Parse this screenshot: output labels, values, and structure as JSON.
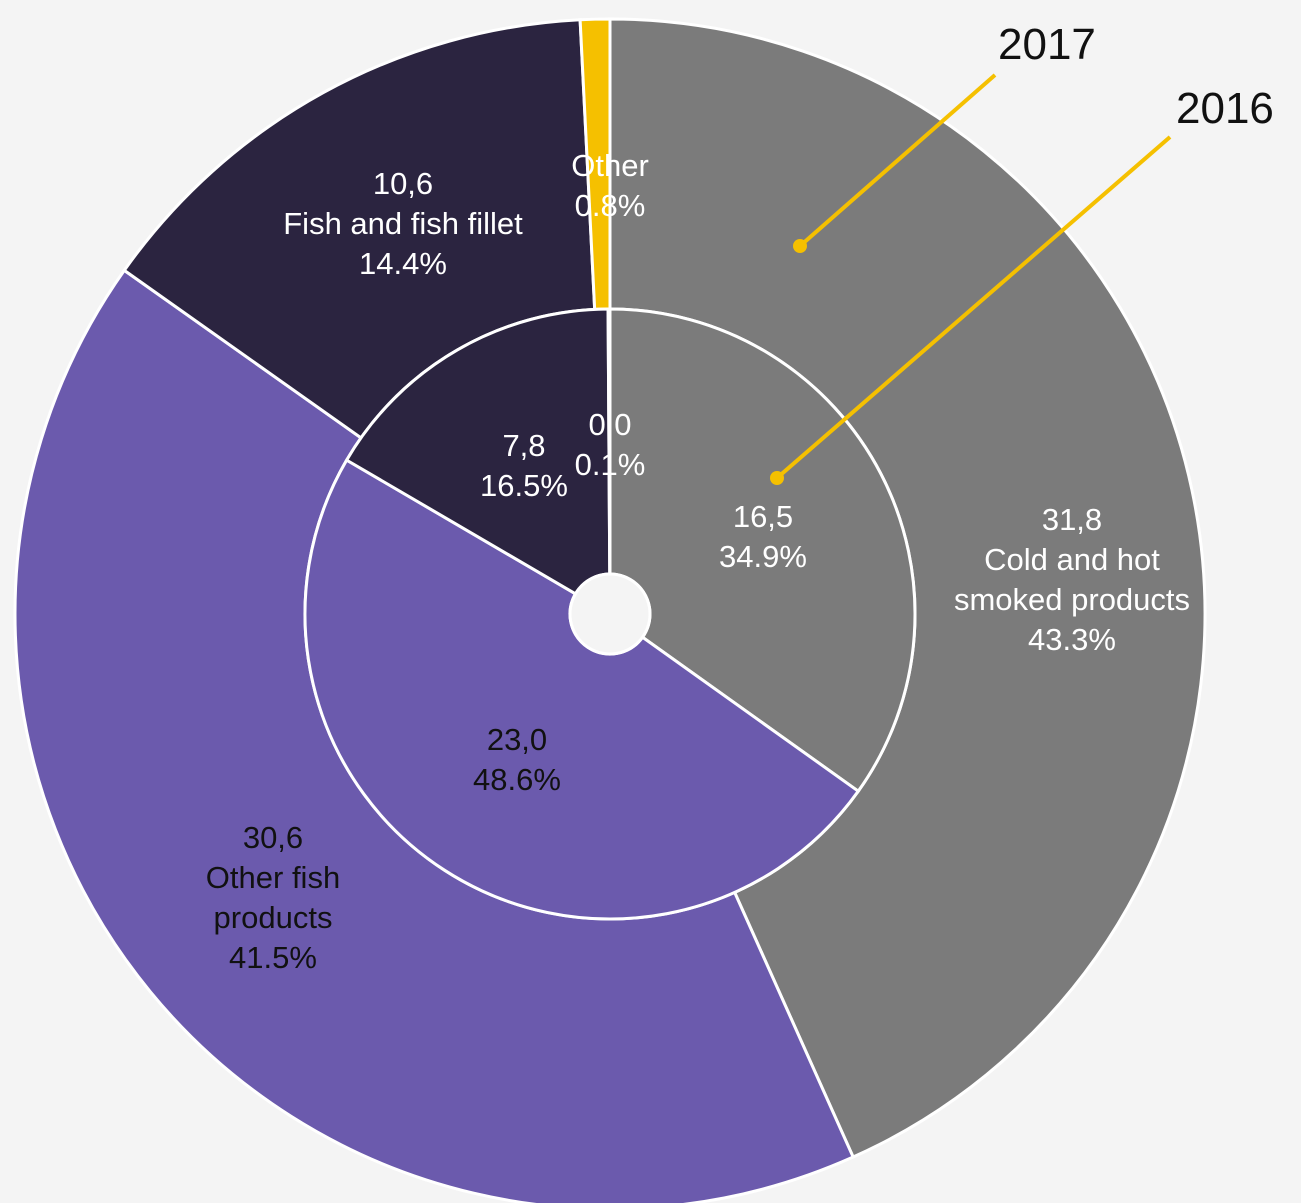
{
  "chart_data": {
    "type": "donut",
    "categories": [
      "Cold and hot smoked products",
      "Other fish products",
      "Fish and fish fillet",
      "Other"
    ],
    "series": [
      {
        "name": "2017",
        "colors": [
          "#7b7b7b",
          "#6b5aad",
          "#2b2440",
          "#f5c000"
        ],
        "values": [
          43.3,
          41.5,
          14.4,
          0.8
        ],
        "value_labels": [
          "43.3%",
          "41.5%",
          "14.4%",
          "0.8%"
        ],
        "amounts": [
          31.8,
          30.6,
          10.6,
          null
        ],
        "amount_labels": [
          "31,8",
          "30,6",
          "10,6",
          null
        ]
      },
      {
        "name": "2016",
        "colors": [
          "#7b7b7b",
          "#6b5aad",
          "#2b2440",
          "#f5c000"
        ],
        "values": [
          34.9,
          48.6,
          16.5,
          0.1
        ],
        "value_labels": [
          "34.9%",
          "48.6%",
          "16.5%",
          "0.1%"
        ],
        "amounts": [
          16.5,
          23.0,
          7.8,
          0.0
        ],
        "amount_labels": [
          "16,5",
          "23,0",
          "7,8",
          "0,0"
        ]
      }
    ]
  }
}
